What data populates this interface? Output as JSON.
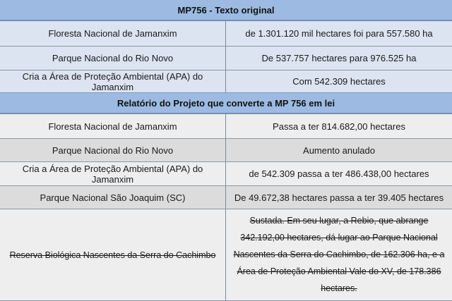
{
  "sections": [
    {
      "title": "MP756 - Texto original",
      "rows": [
        [
          "Floresta Nacional de Jamanxim",
          "de 1.301.120 mil hectares foi para 557.580 ha"
        ],
        [
          "Parque Nacional do Rio Novo",
          "De 537.757 hectares para 976.525 ha"
        ],
        [
          "Cria a Área de Proteção Ambiental (APA) do Jamanxim",
          "Com 542.309 hectares"
        ]
      ]
    },
    {
      "title": "Relatório do Projeto que converte a MP 756 em lei",
      "rows": [
        [
          "Floresta Nacional de Jamanxim",
          "Passa a ter 814.682,00 hectares"
        ],
        [
          "Parque Nacional do Rio Novo",
          "Aumento anulado"
        ],
        [
          "Cria a Área de Proteção Ambiental (APA) do Jamanxim",
          "de 542.309 passa a ter 486.438,00 hectares"
        ],
        [
          "Parque Nacional São Joaquim (SC)",
          "De 49.672,38 hectares passa a ter 39.405 hectares"
        ],
        [
          "Reserva Biológica Nascentes da Serra do Cachimbo",
          "Sustada. Em seu lugar, a Rebio, que abrange 342.192,00 hectares, dá lugar ao Parque Nacional Nascentes da Serra do Cachimbo, de 162.306 ha, e a Área de Proteção Ambiental Vale do XV, de 178.386 hectares."
        ]
      ]
    }
  ]
}
